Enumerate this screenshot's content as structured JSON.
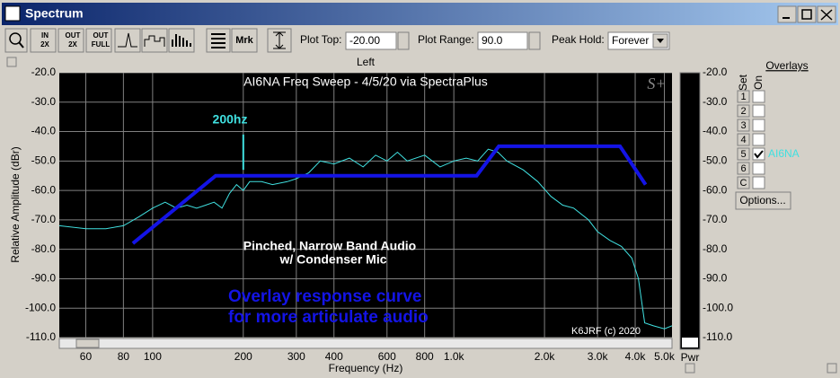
{
  "window": {
    "title": "Spectrum",
    "toolbar": {
      "zoom_buttons": [
        [
          "IN",
          "2X"
        ],
        [
          "OUT",
          "2X"
        ],
        [
          "OUT",
          "FULL"
        ]
      ],
      "marker_button": "Mrk",
      "plot_top_label": "Plot Top:",
      "plot_top": "-20.00",
      "plot_range_label": "Plot Range:",
      "plot_range": "90.0",
      "peak_hold_label": "Peak Hold:",
      "peak_hold": "Forever"
    },
    "channel": "Left",
    "power_label": "Pwr",
    "overlays": {
      "title": "Overlays",
      "set_label": "Set",
      "on_label": "On",
      "rows": [
        "1",
        "2",
        "3",
        "4",
        "5",
        "6",
        "C"
      ],
      "checked": [
        false,
        false,
        false,
        false,
        true,
        false,
        false
      ],
      "active_name": "AI6NA",
      "options_button": "Options..."
    }
  },
  "chart_data": {
    "type": "line",
    "title": "AI6NA Freq Sweep - 4/5/20 via SpectraPlus",
    "logo": "S+",
    "x_label": "Frequency (Hz)",
    "y_label": "Relative Amplitude (dBr)",
    "log_x": true,
    "grid": true,
    "xlim": [
      49,
      5300
    ],
    "ylim": [
      -110,
      -20
    ],
    "xticks": [
      60,
      80,
      100,
      200,
      300,
      400,
      600,
      800,
      {
        "value": 1000,
        "label": "1.0k"
      },
      {
        "value": 2000,
        "label": "2.0k"
      },
      {
        "value": 3000,
        "label": "3.0k"
      },
      {
        "value": 4000,
        "label": "4.0k"
      },
      {
        "value": 5000,
        "label": "5.0k"
      }
    ],
    "yticks": [
      {
        "value": -20,
        "label": "-20.0"
      },
      {
        "value": -30,
        "label": "-30.0"
      },
      {
        "value": -40,
        "label": "-40.0"
      },
      {
        "value": -50,
        "label": "-50.0"
      },
      {
        "value": -60,
        "label": "-60.0"
      },
      {
        "value": -70,
        "label": "-70.0"
      },
      {
        "value": -80,
        "label": "-80.0"
      },
      {
        "value": -90,
        "label": "-90.0"
      },
      {
        "value": -100,
        "label": "-100.0"
      },
      {
        "value": -110,
        "label": "-110.0"
      }
    ],
    "series": [
      {
        "name": "AI6NA",
        "color": "#40e0e0",
        "x": [
          49,
          60,
          70,
          80,
          90,
          100,
          110,
          120,
          130,
          140,
          150,
          160,
          170,
          180,
          190,
          200,
          210,
          230,
          250,
          280,
          300,
          330,
          360,
          400,
          450,
          500,
          550,
          600,
          650,
          700,
          800,
          900,
          1000,
          1100,
          1200,
          1300,
          1400,
          1500,
          1700,
          1900,
          2100,
          2300,
          2500,
          2800,
          3000,
          3300,
          3600,
          3900,
          4100,
          4300,
          4600,
          5000,
          5300
        ],
        "values": [
          -72,
          -73,
          -73,
          -72,
          -69,
          -66,
          -64,
          -66,
          -65,
          -66,
          -65,
          -64,
          -66,
          -61,
          -58,
          -60,
          -57,
          -57,
          -58,
          -57,
          -56,
          -54,
          -50,
          -51,
          -49,
          -52,
          -48,
          -50,
          -47,
          -50,
          -48,
          -52,
          -50,
          -49,
          -50,
          -46,
          -47,
          -50,
          -53,
          -57,
          -62,
          -65,
          -66,
          -70,
          -74,
          -77,
          -79,
          -83,
          -90,
          -105,
          -106,
          -107,
          -106
        ]
      },
      {
        "color": "#1414e6",
        "x": [
          86,
          162,
          1190,
          1410,
          3560,
          4330
        ],
        "values": [
          -78,
          -55,
          -55,
          -45,
          -45,
          -58
        ]
      }
    ],
    "marker": {
      "x": 200,
      "values": [
        -41,
        -53
      ]
    },
    "annotations": [
      "200hz",
      "Pinched, Narrow Band Audio",
      "w/ Condenser Mic",
      "Overlay response curve",
      "for more articulate audio",
      "K6JRF (c) 2020"
    ]
  }
}
